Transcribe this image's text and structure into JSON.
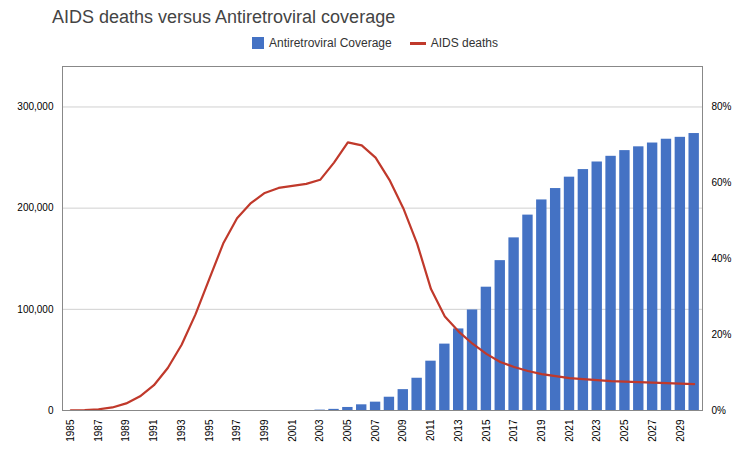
{
  "chart_data": {
    "type": "bar",
    "title": "AIDS deaths versus Antiretroviral coverage",
    "x": [
      1985,
      1986,
      1987,
      1988,
      1989,
      1990,
      1991,
      1992,
      1993,
      1994,
      1995,
      1996,
      1997,
      1998,
      1999,
      2000,
      2001,
      2002,
      2003,
      2004,
      2005,
      2006,
      2007,
      2008,
      2009,
      2010,
      2011,
      2012,
      2013,
      2014,
      2015,
      2016,
      2017,
      2018,
      2019,
      2020,
      2021,
      2022,
      2023,
      2024,
      2025,
      2026,
      2027,
      2028,
      2029,
      2030
    ],
    "series": [
      {
        "name": "Antiretroviral Coverage",
        "type": "bar",
        "axis": "y2",
        "color": "#4472C4",
        "values": [
          0,
          0,
          0,
          0,
          0,
          0,
          0,
          0,
          0,
          0,
          0,
          0,
          0,
          0,
          0,
          0,
          0,
          0,
          0.001,
          0.003,
          0.008,
          0.015,
          0.022,
          0.035,
          0.055,
          0.085,
          0.13,
          0.175,
          0.215,
          0.265,
          0.325,
          0.395,
          0.455,
          0.515,
          0.555,
          0.585,
          0.615,
          0.635,
          0.655,
          0.67,
          0.685,
          0.695,
          0.705,
          0.715,
          0.72,
          0.73
        ]
      },
      {
        "name": "AIDS deaths",
        "type": "line",
        "color": "#C0392B",
        "values": [
          200,
          500,
          1200,
          3000,
          7000,
          14000,
          25000,
          42000,
          65000,
          95000,
          130000,
          165000,
          190000,
          205000,
          215000,
          220000,
          222000,
          224000,
          228000,
          245000,
          265000,
          262000,
          250000,
          228000,
          200000,
          165000,
          120000,
          93000,
          78000,
          66000,
          56000,
          48000,
          43000,
          39000,
          36000,
          34000,
          32000,
          31000,
          30000,
          29000,
          28500,
          28000,
          27500,
          27000,
          26500,
          26000
        ]
      }
    ],
    "xlim": [
      1984.4,
      2030.6
    ],
    "xticks": [
      1985,
      1987,
      1989,
      1991,
      1993,
      1995,
      1997,
      1999,
      2001,
      2003,
      2005,
      2007,
      2009,
      2011,
      2013,
      2015,
      2017,
      2019,
      2021,
      2023,
      2025,
      2027,
      2029
    ],
    "ylim": [
      0,
      340000
    ],
    "yticks": [
      0,
      {
        "value": 100000,
        "label": "100,000"
      },
      {
        "value": 200000,
        "label": "200,000"
      },
      {
        "value": 300000,
        "label": "300,000"
      }
    ],
    "y2lim": [
      0,
      0.9067
    ],
    "y2ticks": [
      {
        "value": 0.0,
        "label": "0%"
      },
      {
        "value": 0.2,
        "label": "20%"
      },
      {
        "value": 0.4,
        "label": "40%"
      },
      {
        "value": 0.6,
        "label": "60%"
      },
      {
        "value": 0.8,
        "label": "80%"
      }
    ],
    "grid": true,
    "legend": "top"
  }
}
